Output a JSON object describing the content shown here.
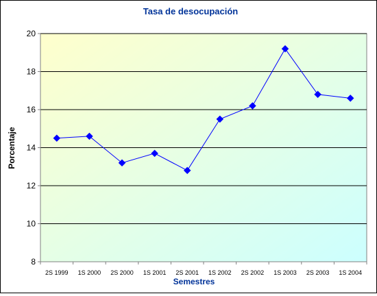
{
  "chart_data": {
    "type": "line",
    "title": "Tasa de desocupación",
    "xlabel": "Semestres",
    "ylabel": "Porcentaje",
    "categories": [
      "2S 1999",
      "1S 2000",
      "2S 2000",
      "1S 2001",
      "2S 2001",
      "1S 2002",
      "2S 2002",
      "1S 2003",
      "2S 2003",
      "1S 2004"
    ],
    "series": [
      {
        "values": [
          14.5,
          14.6,
          13.2,
          13.7,
          12.8,
          15.5,
          16.2,
          19.2,
          16.8,
          16.6
        ]
      }
    ],
    "ylim": [
      8,
      20
    ],
    "yticks": [
      8,
      10,
      12,
      14,
      16,
      18,
      20
    ],
    "grid": true,
    "legend": "none",
    "colors": {
      "line": "#0000ff",
      "marker": "#0000ff",
      "title": "#003399",
      "xlabel": "#003399",
      "gridline": "#000000",
      "plot_bg_start": "#ffffcc",
      "plot_bg_end": "#ccffff"
    }
  }
}
